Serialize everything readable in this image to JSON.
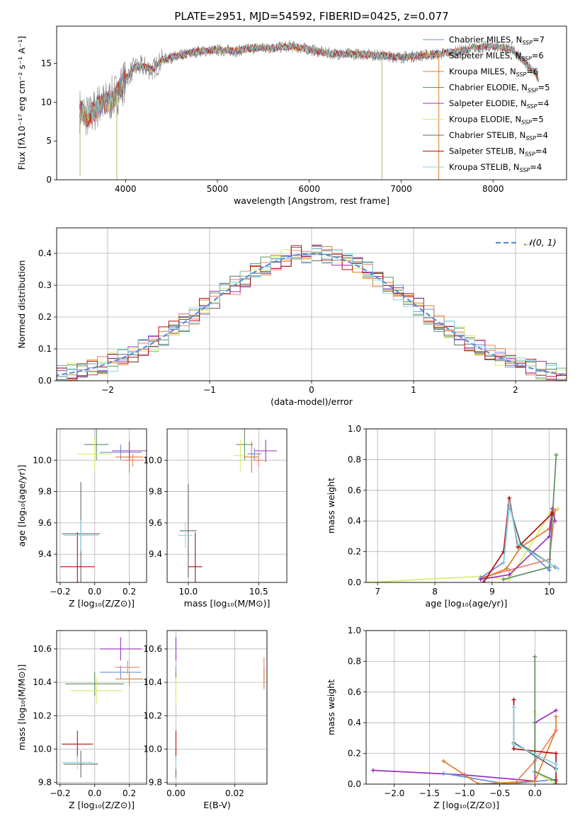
{
  "title": "PLATE=2951, MJD=54592, FIBERID=0425, z=0.077",
  "colors": {
    "Chabrier MILES": "#6a8fd9",
    "Salpeter MILES": "#f07f66",
    "Kroupa MILES": "#e07b27",
    "Chabrier ELODIE": "#5f8f5f",
    "Salpeter ELODIE": "#9b30b8",
    "Kroupa ELODIE": "#d8ec6a",
    "Chabrier STELIB": "#666666",
    "Salpeter STELIB": "#b50f0f",
    "Kroupa STELIB": "#84d5e6",
    "normal": "#5b8fd6",
    "grid": "#b0b0b0"
  },
  "legend": [
    {
      "label": "Chabrier MILES, N",
      "sub": "SSP",
      "eq": "=7",
      "key": "Chabrier MILES"
    },
    {
      "label": "Salpeter MILES, N",
      "sub": "SSP",
      "eq": "=6",
      "key": "Salpeter MILES"
    },
    {
      "label": "Kroupa MILES, N",
      "sub": "SSP",
      "eq": "=6",
      "key": "Kroupa MILES"
    },
    {
      "label": "Chabrier ELODIE, N",
      "sub": "SSP",
      "eq": "=5",
      "key": "Chabrier ELODIE"
    },
    {
      "label": "Salpeter ELODIE, N",
      "sub": "SSP",
      "eq": "=4",
      "key": "Salpeter ELODIE"
    },
    {
      "label": "Kroupa ELODIE, N",
      "sub": "SSP",
      "eq": "=5",
      "key": "Kroupa ELODIE"
    },
    {
      "label": "Chabrier STELIB, N",
      "sub": "SSP",
      "eq": "=4",
      "key": "Chabrier STELIB"
    },
    {
      "label": "Salpeter STELIB, N",
      "sub": "SSP",
      "eq": "=4",
      "key": "Salpeter STELIB"
    },
    {
      "label": "Kroupa STELIB, N",
      "sub": "SSP",
      "eq": "=4",
      "key": "Kroupa STELIB"
    }
  ],
  "chart_data": [
    {
      "id": "spectrum",
      "type": "line",
      "xlabel": "wavelength [Angstrom, rest frame]",
      "ylabel": "Flux [fλ10⁻¹⁷ erg cm⁻² s⁻¹ A⁻¹]",
      "xlim": [
        3250,
        8800
      ],
      "ylim": [
        0,
        19.8
      ],
      "xticks": [
        "4000",
        "5000",
        "6000",
        "7000",
        "8000"
      ],
      "yticks": [
        "0",
        "5",
        "10",
        "15"
      ],
      "continuum": [
        [
          3500,
          9
        ],
        [
          3600,
          8
        ],
        [
          3700,
          9.5
        ],
        [
          3800,
          10
        ],
        [
          3900,
          11
        ],
        [
          4000,
          13
        ],
        [
          4100,
          14.5
        ],
        [
          4200,
          14.6
        ],
        [
          4300,
          14.2
        ],
        [
          4400,
          15.5
        ],
        [
          4600,
          16
        ],
        [
          4800,
          16.6
        ],
        [
          5000,
          16.7
        ],
        [
          5200,
          16.6
        ],
        [
          5400,
          17
        ],
        [
          5600,
          17
        ],
        [
          5800,
          17.2
        ],
        [
          6000,
          16.8
        ],
        [
          6200,
          16.3
        ],
        [
          6400,
          16.2
        ],
        [
          6600,
          16.2
        ],
        [
          6800,
          16
        ],
        [
          7000,
          15.8
        ],
        [
          7200,
          16
        ],
        [
          7400,
          16.2
        ],
        [
          7600,
          16.5
        ],
        [
          7800,
          17
        ],
        [
          8000,
          17.2
        ],
        [
          8200,
          16.8
        ],
        [
          8400,
          14.5
        ],
        [
          8500,
          13
        ]
      ],
      "model_end": 7400,
      "legend_position": "upper right"
    },
    {
      "id": "residuals",
      "type": "histogram",
      "xlabel": "(data-model)/error",
      "ylabel": "Normed distribution",
      "xlim": [
        -2.5,
        2.5
      ],
      "ylim": [
        0,
        0.48
      ],
      "xticks": [
        "−2",
        "−1",
        "0",
        "1",
        "2"
      ],
      "yticks": [
        "0.0",
        "0.1",
        "0.2",
        "0.3",
        "0.4"
      ],
      "bin_width": 0.1,
      "legend": "𝒩(0, 1)",
      "series": "normal pdf with per-model scatter for 9 models"
    },
    {
      "id": "age_vs_Z",
      "type": "scatter",
      "xlabel": "Z [log₁₀(Z/Z⊙)]",
      "ylabel": "age  [log₁₀(age/yr)]",
      "xlim": [
        -0.22,
        0.3
      ],
      "ylim": [
        9.22,
        10.2
      ],
      "xticks": [
        "−0.2",
        "0.0",
        "0.2"
      ],
      "yticks": [
        "9.4",
        "9.6",
        "9.8",
        "10.0"
      ],
      "points": [
        {
          "key": "Chabrier MILES",
          "x": 0.15,
          "y": 10.05,
          "ex": 0.12,
          "ey": 0.05
        },
        {
          "key": "Salpeter MILES",
          "x": 0.22,
          "y": 10.0,
          "ex": 0.06,
          "ey": 0.04
        },
        {
          "key": "Kroupa MILES",
          "x": 0.2,
          "y": 10.02,
          "ex": 0.08,
          "ey": 0.1
        },
        {
          "key": "Chabrier ELODIE",
          "x": 0.01,
          "y": 10.1,
          "ex": 0.07,
          "ey": 0.1
        },
        {
          "key": "Salpeter ELODIE",
          "x": 0.2,
          "y": 10.06,
          "ex": 0.1,
          "ey": 0.06
        },
        {
          "key": "Kroupa ELODIE",
          "x": 0.0,
          "y": 10.04,
          "ex": 0.1,
          "ey": 0.1
        },
        {
          "key": "Chabrier STELIB",
          "x": -0.08,
          "y": 9.53,
          "ex": 0.11,
          "ey": 0.33
        },
        {
          "key": "Salpeter STELIB",
          "x": -0.1,
          "y": 9.32,
          "ex": 0.1,
          "ey": 0.22
        },
        {
          "key": "Kroupa STELIB",
          "x": -0.08,
          "y": 9.52,
          "ex": 0.1,
          "ey": 0.1
        }
      ]
    },
    {
      "id": "age_vs_mass",
      "type": "scatter",
      "xlabel": "mass [log₁₀(M/M⊙)]",
      "ylabel": "",
      "xlim": [
        9.85,
        10.7
      ],
      "ylim": [
        9.22,
        10.2
      ],
      "xticks": [
        "10.0",
        "10.5"
      ],
      "yticks": [
        "9.4",
        "9.6",
        "9.8",
        "10.0"
      ],
      "points": [
        {
          "key": "Chabrier MILES",
          "x": 10.47,
          "y": 10.04,
          "ex": 0.05,
          "ey": 0.04
        },
        {
          "key": "Salpeter MILES",
          "x": 10.5,
          "y": 10.0,
          "ex": 0.04,
          "ey": 0.04
        },
        {
          "key": "Kroupa MILES",
          "x": 10.45,
          "y": 10.02,
          "ex": 0.05,
          "ey": 0.1
        },
        {
          "key": "Chabrier ELODIE",
          "x": 10.4,
          "y": 10.1,
          "ex": 0.06,
          "ey": 0.1
        },
        {
          "key": "Salpeter ELODIE",
          "x": 10.55,
          "y": 10.06,
          "ex": 0.08,
          "ey": 0.07
        },
        {
          "key": "Kroupa ELODIE",
          "x": 10.37,
          "y": 10.03,
          "ex": 0.05,
          "ey": 0.1
        },
        {
          "key": "Chabrier STELIB",
          "x": 10.0,
          "y": 9.55,
          "ex": 0.06,
          "ey": 0.3
        },
        {
          "key": "Salpeter STELIB",
          "x": 10.05,
          "y": 9.32,
          "ex": 0.05,
          "ey": 0.22
        },
        {
          "key": "Kroupa STELIB",
          "x": 9.98,
          "y": 9.52,
          "ex": 0.05,
          "ey": 0.08
        }
      ]
    },
    {
      "id": "weight_vs_age",
      "type": "line",
      "xlabel": "age  [log₁₀(age/yr)]",
      "ylabel": "mass weight",
      "xlim": [
        6.8,
        10.3
      ],
      "ylim": [
        0,
        1.0
      ],
      "xticks": [
        "7",
        "8",
        "9",
        "10"
      ],
      "yticks": [
        "0.0",
        "0.2",
        "0.4",
        "0.6",
        "0.8",
        "1.0"
      ],
      "series": [
        {
          "key": "Kroupa ELODIE",
          "points": [
            [
              6.85,
              0.0
            ],
            [
              8.8,
              0.04
            ],
            [
              9.3,
              0.02
            ],
            [
              10.0,
              0.44
            ],
            [
              10.15,
              0.48
            ]
          ]
        },
        {
          "key": "Salpeter MILES",
          "points": [
            [
              8.8,
              0.03
            ],
            [
              9.3,
              0.08
            ],
            [
              10.0,
              0.15
            ],
            [
              10.1,
              0.47
            ]
          ]
        },
        {
          "key": "Chabrier MILES",
          "points": [
            [
              8.8,
              0.03
            ],
            [
              9.2,
              0.13
            ],
            [
              9.3,
              0.5
            ],
            [
              9.5,
              0.25
            ],
            [
              10.0,
              0.08
            ],
            [
              10.05,
              0.45
            ]
          ]
        },
        {
          "key": "Kroupa MILES",
          "points": [
            [
              8.8,
              0.02
            ],
            [
              9.25,
              0.09
            ],
            [
              9.5,
              0.23
            ],
            [
              10.0,
              0.35
            ],
            [
              10.05,
              0.46
            ]
          ]
        },
        {
          "key": "Salpeter ELODIE",
          "points": [
            [
              8.8,
              0.02
            ],
            [
              9.3,
              0.05
            ],
            [
              10.0,
              0.3
            ],
            [
              10.05,
              0.48
            ],
            [
              10.1,
              0.4
            ]
          ]
        },
        {
          "key": "Chabrier ELODIE",
          "points": [
            [
              9.2,
              0.02
            ],
            [
              10.0,
              0.1
            ],
            [
              10.12,
              0.83
            ]
          ]
        },
        {
          "key": "Salpeter STELIB",
          "points": [
            [
              8.85,
              0.0
            ],
            [
              9.2,
              0.2
            ],
            [
              9.3,
              0.55
            ],
            [
              9.45,
              0.23
            ],
            [
              10.05,
              0.45
            ]
          ]
        },
        {
          "key": "Chabrier STELIB",
          "points": [
            [
              9.3,
              0.5
            ],
            [
              9.5,
              0.25
            ],
            [
              10.1,
              0.1
            ]
          ]
        },
        {
          "key": "Kroupa STELIB",
          "points": [
            [
              9.2,
              0.13
            ],
            [
              9.3,
              0.52
            ],
            [
              9.45,
              0.25
            ],
            [
              10.15,
              0.09
            ]
          ]
        }
      ]
    },
    {
      "id": "mass_vs_Z",
      "type": "scatter",
      "xlabel": "Z [log₁₀(Z/Z⊙)]",
      "ylabel": "mass [log₁₀(M/M⊙)]",
      "xlim": [
        -0.22,
        0.3
      ],
      "ylim": [
        9.79,
        10.71
      ],
      "xticks": [
        "−0.2",
        "0.0",
        "0.2"
      ],
      "yticks": [
        "9.8",
        "10.0",
        "10.2",
        "10.4",
        "10.6"
      ],
      "points": [
        {
          "key": "Chabrier MILES",
          "x": 0.15,
          "y": 10.46,
          "ex": 0.12,
          "ey": 0.04
        },
        {
          "key": "Salpeter MILES",
          "x": 0.19,
          "y": 10.49,
          "ex": 0.07,
          "ey": 0.04
        },
        {
          "key": "Kroupa MILES",
          "x": 0.2,
          "y": 10.42,
          "ex": 0.08,
          "ey": 0.04
        },
        {
          "key": "Chabrier ELODIE",
          "x": 0.0,
          "y": 10.39,
          "ex": 0.17,
          "ey": 0.07
        },
        {
          "key": "Salpeter ELODIE",
          "x": 0.15,
          "y": 10.6,
          "ex": 0.12,
          "ey": 0.07
        },
        {
          "key": "Kroupa ELODIE",
          "x": 0.01,
          "y": 10.35,
          "ex": 0.15,
          "ey": 0.08
        },
        {
          "key": "Chabrier STELIB",
          "x": -0.08,
          "y": 9.91,
          "ex": 0.1,
          "ey": 0.08
        },
        {
          "key": "Salpeter STELIB",
          "x": -0.1,
          "y": 10.03,
          "ex": 0.09,
          "ey": 0.08
        },
        {
          "key": "Kroupa STELIB",
          "x": -0.1,
          "y": 9.92,
          "ex": 0.09,
          "ey": 0.04
        }
      ]
    },
    {
      "id": "mass_vs_ebv",
      "type": "scatter",
      "xlabel": "E(B-V)",
      "ylabel": "",
      "xlim": [
        -0.003,
        0.031
      ],
      "ylim": [
        9.79,
        10.71
      ],
      "xticks": [
        "0.00",
        "0.02"
      ],
      "yticks": [
        "9.8",
        "10.0",
        "10.2",
        "10.4",
        "10.6"
      ],
      "points": [
        {
          "key": "Chabrier MILES",
          "x": 0.0,
          "y": 10.46,
          "ex": 0.0,
          "ey": 0.04
        },
        {
          "key": "Salpeter MILES",
          "x": 0.03,
          "y": 10.49,
          "ex": 0.0,
          "ey": 0.06
        },
        {
          "key": "Kroupa MILES",
          "x": 0.03,
          "y": 10.42,
          "ex": 0.0,
          "ey": 0.06
        },
        {
          "key": "Chabrier ELODIE",
          "x": 0.0,
          "y": 10.39,
          "ex": 0.0,
          "ey": 0.07
        },
        {
          "key": "Salpeter ELODIE",
          "x": 0.0,
          "y": 10.6,
          "ex": 0.0,
          "ey": 0.07
        },
        {
          "key": "Kroupa ELODIE",
          "x": 0.0,
          "y": 10.35,
          "ex": 0.0,
          "ey": 0.08
        },
        {
          "key": "Chabrier STELIB",
          "x": 0.0,
          "y": 9.91,
          "ex": 0.0,
          "ey": 0.08
        },
        {
          "key": "Salpeter STELIB",
          "x": 0.0,
          "y": 10.03,
          "ex": 0.0,
          "ey": 0.08
        },
        {
          "key": "Kroupa STELIB",
          "x": 0.0,
          "y": 9.92,
          "ex": 0.0,
          "ey": 0.04
        }
      ]
    },
    {
      "id": "weight_vs_Z",
      "type": "line",
      "xlabel": "Z [log₁₀(Z/Z⊙)]",
      "ylabel": "mass weight",
      "xlim": [
        -2.4,
        0.45
      ],
      "ylim": [
        0,
        1.0
      ],
      "xticks": [
        "−2.0",
        "−1.5",
        "−1.0",
        "−0.5",
        "0.0"
      ],
      "yticks": [
        "0.0",
        "0.2",
        "0.4",
        "0.6",
        "0.8",
        "1.0"
      ],
      "series": [
        {
          "key": "Salpeter ELODIE",
          "points": [
            [
              -2.3,
              0.09
            ],
            [
              -1.0,
              0.06
            ],
            [
              0.0,
              0.02
            ],
            [
              0.0,
              0.4
            ],
            [
              0.3,
              0.48
            ]
          ]
        },
        {
          "key": "Chabrier MILES",
          "points": [
            [
              -1.3,
              0.07
            ],
            [
              -0.4,
              0.0
            ],
            [
              0.3,
              0.03
            ]
          ]
        },
        {
          "key": "Kroupa MILES",
          "points": [
            [
              -1.3,
              0.15
            ],
            [
              -0.8,
              0.0
            ],
            [
              0.0,
              0.02
            ],
            [
              0.3,
              0.35
            ],
            [
              0.3,
              0.44
            ]
          ]
        },
        {
          "key": "Salpeter MILES",
          "points": [
            [
              -0.3,
              0.0
            ],
            [
              0.0,
              0.15
            ],
            [
              0.3,
              0.35
            ]
          ]
        },
        {
          "key": "Kroupa ELODIE",
          "points": [
            [
              0.0,
              0.47
            ],
            [
              0.0,
              0.08
            ],
            [
              0.3,
              0.0
            ]
          ]
        },
        {
          "key": "Chabrier ELODIE",
          "points": [
            [
              0.0,
              0.83
            ],
            [
              0.0,
              0.08
            ],
            [
              0.3,
              0.02
            ]
          ]
        },
        {
          "key": "Salpeter STELIB",
          "points": [
            [
              -0.3,
              0.55
            ],
            [
              -0.3,
              0.23
            ],
            [
              0.3,
              0.2
            ],
            [
              0.3,
              0.0
            ]
          ]
        },
        {
          "key": "Chabrier STELIB",
          "points": [
            [
              -0.3,
              0.27
            ],
            [
              0.3,
              0.1
            ]
          ]
        },
        {
          "key": "Kroupa STELIB",
          "points": [
            [
              -0.3,
              0.5
            ],
            [
              -0.3,
              0.26
            ],
            [
              0.3,
              0.13
            ],
            [
              0.3,
              0.09
            ]
          ]
        }
      ]
    }
  ]
}
